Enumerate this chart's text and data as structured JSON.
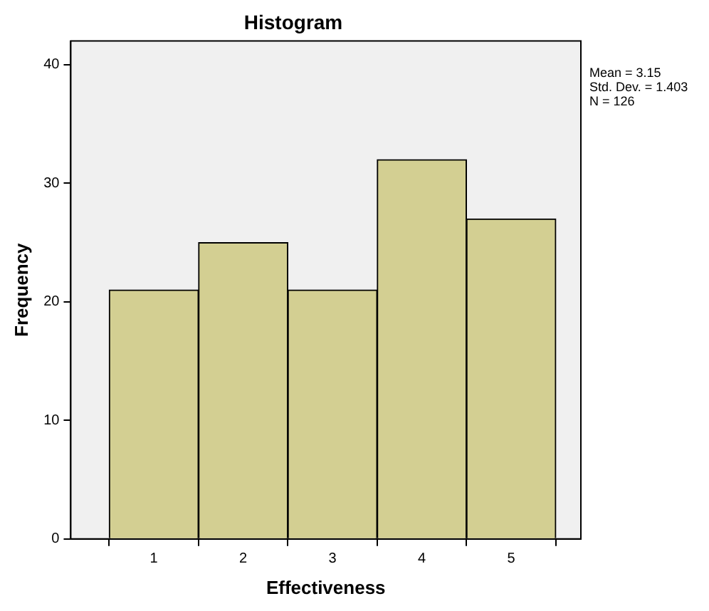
{
  "chart_data": {
    "type": "histogram",
    "title": "Histogram",
    "xlabel": "Effectiveness",
    "ylabel": "Frequency",
    "bins": [
      0.5,
      1.5,
      2.5,
      3.5,
      4.5,
      5.5
    ],
    "values": [
      21,
      25,
      21,
      32,
      27
    ],
    "color": "#d3cf92",
    "xlim": [
      0.07,
      5.78
    ],
    "xticks": [
      1,
      2,
      3,
      4,
      5
    ],
    "ylim": [
      0,
      42
    ],
    "yticks": [
      0,
      10,
      20,
      30,
      40
    ],
    "grid": false,
    "legend": false,
    "annotations": [
      "Mean = 3.15",
      "Std. Dev. = 1.403",
      "N = 126"
    ]
  }
}
